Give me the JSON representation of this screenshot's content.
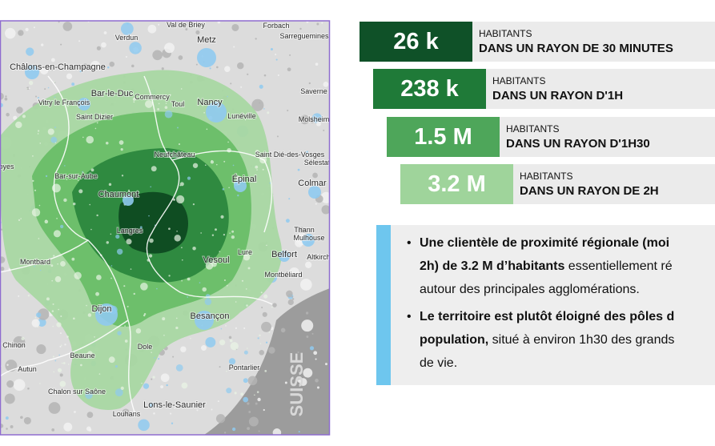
{
  "map": {
    "labels": [
      "Val de Briey",
      "Forbach",
      "Verdun",
      "Metz",
      "Sarreguemines",
      "Châlons-en-Champagne",
      "Bar-le-Duc",
      "Commercy",
      "Saverne",
      "Vitry le François",
      "Toul",
      "Nancy",
      "Saint Dizier",
      "Lunéville",
      "Molsheim",
      "Neufchâteau",
      "Saint Dié-des-Vosges",
      "Sélestat",
      "oyes",
      "Bar-sur-Aube",
      "Épinal",
      "Colmar",
      "Chaumont",
      "Langres",
      "Thann",
      "Mulhouse",
      "Belfort",
      "Montbard",
      "Vesoul",
      "Lure",
      "Altkirch",
      "Montbéliard",
      "Dijon",
      "Besançon",
      "y Chinon",
      "Dole",
      "Beaune",
      "Autun",
      "Pontarlier",
      "Chalon sur Saône",
      "Lons-le-Saunier",
      "Louhans"
    ],
    "country": "SUISSE"
  },
  "stats": [
    {
      "value": "26 k",
      "line1": "HABITANTS",
      "line2": "DANS UN RAYON DE 30 MINUTES"
    },
    {
      "value": "238 k",
      "line1": "HABITANTS",
      "line2": "DANS UN RAYON D'1H"
    },
    {
      "value": "1.5 M",
      "line1": "HABITANTS",
      "line2": "DANS UN RAYON D'1H30"
    },
    {
      "value": "3.2 M",
      "line1": "HABITANTS",
      "line2": "DANS UN RAYON DE 2H"
    }
  ],
  "bullets": [
    {
      "lines": [
        [
          {
            "text": "Une clientèle de proximité régionale (moi",
            "bold": true
          }
        ],
        [
          {
            "text": "2h) de 3.2 M d’habitants",
            "bold": true
          },
          {
            "text": " essentiellement ré",
            "bold": false
          }
        ],
        [
          {
            "text": "autour des principales agglomérations.",
            "bold": false
          }
        ]
      ]
    },
    {
      "lines": [
        [
          {
            "text": "Le territoire est plutôt éloigné des pôles d",
            "bold": true
          }
        ],
        [
          {
            "text": "population,",
            "bold": true
          },
          {
            "text": " situé à environ 1h30 des grands",
            "bold": false
          }
        ],
        [
          {
            "text": "de vie.",
            "bold": false
          }
        ]
      ]
    }
  ]
}
